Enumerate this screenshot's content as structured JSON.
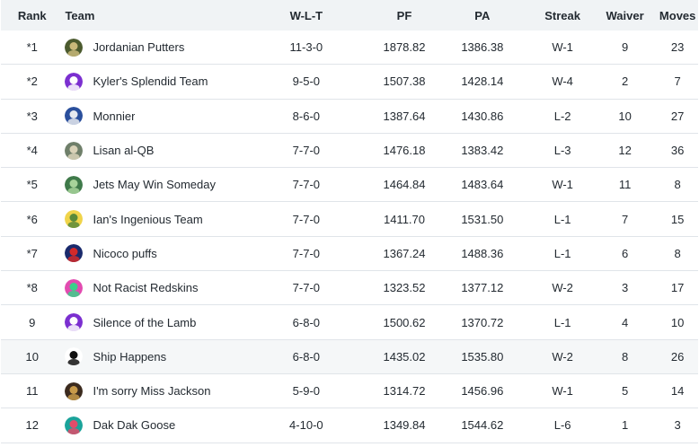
{
  "columns": {
    "rank": "Rank",
    "team": "Team",
    "wlt": "W-L-T",
    "pf": "PF",
    "pa": "PA",
    "streak": "Streak",
    "waiver": "Waiver",
    "moves": "Moves"
  },
  "rows": [
    {
      "rank": "*1",
      "team": "Jordanian Putters",
      "wlt": "11-3-0",
      "pf": "1878.82",
      "pa": "1386.38",
      "streak": "W-1",
      "waiver": "9",
      "moves": "23",
      "logo": {
        "icon": "army-badge-icon",
        "bg": "#4b5a2e",
        "fg": "#c8b87a"
      }
    },
    {
      "rank": "*2",
      "team": "Kyler's Splendid Team",
      "wlt": "9-5-0",
      "pf": "1507.38",
      "pa": "1428.14",
      "streak": "W-4",
      "waiver": "2",
      "moves": "7",
      "logo": {
        "icon": "purple-mascot-icon",
        "bg": "#7b2fd0",
        "fg": "#ffffff"
      }
    },
    {
      "rank": "*3",
      "team": "Monnier",
      "wlt": "8-6-0",
      "pf": "1387.64",
      "pa": "1430.86",
      "streak": "L-2",
      "waiver": "10",
      "moves": "27",
      "logo": {
        "icon": "player-photo-icon",
        "bg": "#2a4f9c",
        "fg": "#e6e9ef"
      }
    },
    {
      "rank": "*4",
      "team": "Lisan al-QB",
      "wlt": "7-7-0",
      "pf": "1476.18",
      "pa": "1383.42",
      "streak": "L-3",
      "waiver": "12",
      "moves": "36",
      "logo": {
        "icon": "player-photo-icon",
        "bg": "#6f7f6a",
        "fg": "#d9d2b8"
      }
    },
    {
      "rank": "*5",
      "team": "Jets May Win Someday",
      "wlt": "7-7-0",
      "pf": "1464.84",
      "pa": "1483.64",
      "streak": "W-1",
      "waiver": "11",
      "moves": "8",
      "logo": {
        "icon": "green-mascot-icon",
        "bg": "#3f7a4a",
        "fg": "#a7d39a"
      }
    },
    {
      "rank": "*6",
      "team": "Ian's Ingenious Team",
      "wlt": "7-7-0",
      "pf": "1411.70",
      "pa": "1531.50",
      "streak": "L-1",
      "waiver": "7",
      "moves": "15",
      "logo": {
        "icon": "yellow-mascot-icon",
        "bg": "#f0d44a",
        "fg": "#5a8a3a"
      }
    },
    {
      "rank": "*7",
      "team": "Nicoco puffs",
      "wlt": "7-7-0",
      "pf": "1367.24",
      "pa": "1488.36",
      "streak": "L-1",
      "waiver": "6",
      "moves": "8",
      "logo": {
        "icon": "spiderman-icon",
        "bg": "#1a2a6c",
        "fg": "#d42a2a"
      }
    },
    {
      "rank": "*8",
      "team": "Not Racist Redskins",
      "wlt": "7-7-0",
      "pf": "1323.52",
      "pa": "1377.12",
      "streak": "W-2",
      "waiver": "3",
      "moves": "17",
      "logo": {
        "icon": "pink-mascot-icon",
        "bg": "#e24bb0",
        "fg": "#3ad08a"
      }
    },
    {
      "rank": "9",
      "team": "Silence of the Lamb",
      "wlt": "6-8-0",
      "pf": "1500.62",
      "pa": "1370.72",
      "streak": "L-1",
      "waiver": "4",
      "moves": "10",
      "logo": {
        "icon": "purple-mascot-icon",
        "bg": "#7b2fd0",
        "fg": "#ffffff"
      }
    },
    {
      "rank": "10",
      "team": "Ship Happens",
      "wlt": "6-8-0",
      "pf": "1435.02",
      "pa": "1535.80",
      "streak": "W-2",
      "waiver": "8",
      "moves": "26",
      "logo": {
        "icon": "darth-vader-icon",
        "bg": "#ffffff",
        "fg": "#111111"
      }
    },
    {
      "rank": "11",
      "team": "I'm sorry Miss Jackson",
      "wlt": "5-9-0",
      "pf": "1314.72",
      "pa": "1456.96",
      "streak": "W-1",
      "waiver": "5",
      "moves": "14",
      "logo": {
        "icon": "ravens-helmet-icon",
        "bg": "#3b2a1e",
        "fg": "#c89a4a"
      }
    },
    {
      "rank": "12",
      "team": "Dak Dak Goose",
      "wlt": "4-10-0",
      "pf": "1349.84",
      "pa": "1544.62",
      "streak": "L-6",
      "waiver": "1",
      "moves": "3",
      "logo": {
        "icon": "teal-mascot-icon",
        "bg": "#1aa39a",
        "fg": "#e24b6a"
      }
    }
  ],
  "highlight_row": 9
}
